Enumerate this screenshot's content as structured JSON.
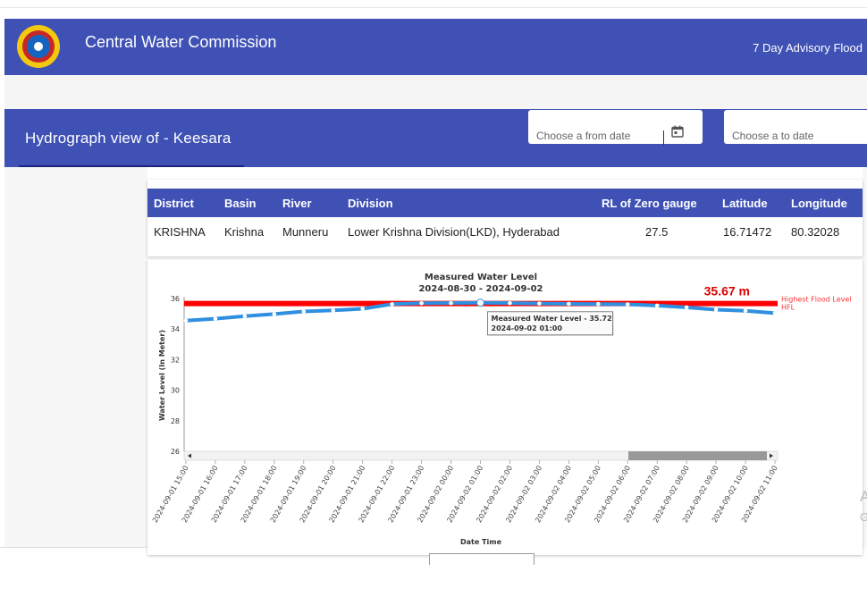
{
  "header": {
    "title": "Central Water Commission",
    "advisory_link": "7 Day Advisory Flood"
  },
  "subheader": {
    "title": "Hydrograph view of - Keesara",
    "from_placeholder": "Choose a from date",
    "to_placeholder": "Choose a to date"
  },
  "table": {
    "headers": [
      "District",
      "Basin",
      "River",
      "Division",
      "RL of Zero gauge",
      "Latitude",
      "Longitude"
    ],
    "row": [
      "KRISHNA",
      "Krishna",
      "Munneru",
      "Lower Krishna Division(LKD), Hyderabad",
      "27.5",
      "16.71472",
      "80.32028"
    ]
  },
  "colors": {
    "primary": "#3f51b5",
    "series_line": "#2f8fe0",
    "hfl_line": "#ff0000"
  },
  "chart_data": {
    "type": "line",
    "title": "Measured Water Level",
    "subtitle": "2024-08-30 - 2024-09-02",
    "xlabel": "Date Time",
    "ylabel": "Water Level (In Meter)",
    "ylim": [
      26,
      36
    ],
    "yticks": [
      "36",
      "34",
      "32",
      "30",
      "28",
      "26"
    ],
    "x": [
      "2024-09-01 15:00",
      "2024-09-01 16:00",
      "2024-09-01 17:00",
      "2024-09-01 18:00",
      "2024-09-01 19:00",
      "2024-09-01 20:00",
      "2024-09-01 21:00",
      "2024-09-01 22:00",
      "2024-09-01 23:00",
      "2024-09-02 00:00",
      "2024-09-02 01:00",
      "2024-09-02 02:00",
      "2024-09-02 03:00",
      "2024-09-02 04:00",
      "2024-09-02 05:00",
      "2024-09-02 06:00",
      "2024-09-02 07:00",
      "2024-09-02 08:00",
      "2024-09-02 09:00",
      "2024-09-02 10:00",
      "2024-09-02 11:00"
    ],
    "series": [
      {
        "name": "Measured Water Level",
        "values": [
          34.55,
          34.68,
          34.84,
          34.98,
          35.15,
          35.22,
          35.33,
          35.63,
          35.69,
          35.7,
          35.72,
          35.7,
          35.67,
          35.65,
          35.64,
          35.62,
          35.54,
          35.42,
          35.27,
          35.2,
          35.04
        ]
      }
    ],
    "hfl": {
      "value": 35.67,
      "label": "35.67 m",
      "legend": "Highest Flood Level",
      "short": "HFL"
    },
    "tooltip": {
      "series": "Measured Water Level - 35.72",
      "x": "2024-09-02 01:00"
    },
    "grid": false
  }
}
